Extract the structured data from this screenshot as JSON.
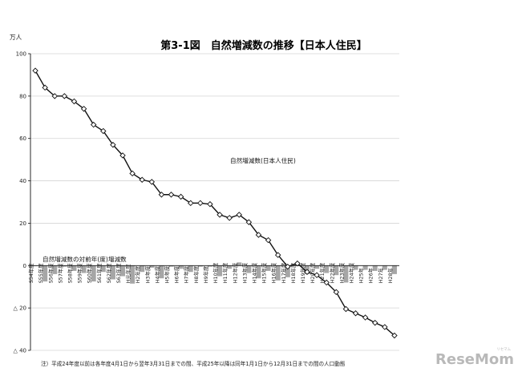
{
  "chart_data": {
    "type": "line",
    "title": "第3-1図　自然増減数の推移【日本人住民】",
    "ylabel": "万人",
    "ylim": [
      -40,
      100
    ],
    "yticks": [
      {
        "value": 100,
        "label": "100"
      },
      {
        "value": 80,
        "label": "80"
      },
      {
        "value": 60,
        "label": "60"
      },
      {
        "value": 40,
        "label": "40"
      },
      {
        "value": 20,
        "label": "20"
      },
      {
        "value": 0,
        "label": "0"
      },
      {
        "value": -20,
        "label": "△ 20"
      },
      {
        "value": -40,
        "label": "△ 40"
      }
    ],
    "grid": true,
    "categories": [
      "S54年度",
      "S55年度",
      "S56年度",
      "S57年度",
      "S58年度",
      "S59年度",
      "S60年度",
      "S61年度",
      "S62年度",
      "S63年度",
      "H元年度",
      "H2年度",
      "H3年度",
      "H4年度",
      "H5年度",
      "H6年度",
      "H7年度",
      "H8年度",
      "H9年度",
      "H10年度",
      "H11年度",
      "H12年度",
      "H13年度",
      "H14年度",
      "H15年度",
      "H16年度",
      "H17年度",
      "H18年度",
      "H19年度",
      "H20年度",
      "H21年度",
      "H22年度",
      "H23年度",
      "H24年度",
      "H25年",
      "H26年",
      "H27年",
      "H28年"
    ],
    "series": [
      {
        "name": "自然増減数(日本人住民)",
        "kind": "line",
        "values": [
          92,
          84,
          80,
          80,
          77.5,
          74,
          66.5,
          63.5,
          57,
          52,
          43.5,
          40.5,
          39.5,
          33.5,
          33.5,
          32.5,
          29.5,
          29.5,
          29,
          24,
          22.5,
          24,
          20.5,
          14.5,
          12,
          5,
          -0.5,
          1,
          -3,
          -4.5,
          -8,
          -12.5,
          -20.5,
          -22.5,
          -24.5,
          -27,
          -29,
          -33
        ]
      },
      {
        "name": "自然増減数の対前年(度)増減数",
        "kind": "bar",
        "values": [
          0,
          -7.5,
          -4,
          -0.5,
          -2.5,
          -3.5,
          -7.5,
          -3,
          -6.5,
          -5,
          -8.5,
          -3,
          -1,
          -6,
          -0.5,
          -1.5,
          -3,
          -0.5,
          -0.5,
          -5,
          -1.5,
          1.5,
          -3.5,
          -6,
          -2.5,
          -7,
          -5.5,
          1.5,
          -4,
          -1.5,
          -3.5,
          -4.5,
          -8,
          -2,
          -2,
          -2.5,
          -2,
          -4
        ]
      }
    ],
    "series_labels": [
      "自然増減数(日本人住民)",
      "自然増減数の対前年(度)増減数"
    ],
    "note": "注）平成24年度以前は各年度4月1日から翌年3月31日までの間、平成25年以降は同年1月1日から12月31日までの間の人口動態",
    "colors": {
      "line": "#111111",
      "marker_fill": "#ffffff",
      "bar": "#a6a6a6",
      "grid": "#d4d4d4",
      "axis": "#111111"
    }
  },
  "watermark": {
    "brand": "ReseMom",
    "sub": "リセマム"
  }
}
